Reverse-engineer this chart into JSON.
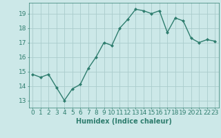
{
  "x": [
    0,
    1,
    2,
    3,
    4,
    5,
    6,
    7,
    8,
    9,
    10,
    11,
    12,
    13,
    14,
    15,
    16,
    17,
    18,
    19,
    20,
    21,
    22,
    23
  ],
  "y": [
    14.8,
    14.6,
    14.8,
    13.9,
    13.0,
    13.8,
    14.1,
    15.2,
    16.0,
    17.0,
    16.8,
    18.0,
    18.6,
    19.3,
    19.2,
    19.0,
    19.2,
    17.7,
    18.7,
    18.5,
    17.3,
    17.0,
    17.2,
    17.1
  ],
  "line_color": "#2e7d6e",
  "marker": "D",
  "marker_size": 2.0,
  "bg_color": "#cce8e8",
  "grid_color": "#aacccc",
  "xlabel": "Humidex (Indice chaleur)",
  "xlim": [
    -0.5,
    23.5
  ],
  "ylim": [
    12.5,
    19.75
  ],
  "yticks": [
    13,
    14,
    15,
    16,
    17,
    18,
    19
  ],
  "xticks": [
    0,
    1,
    2,
    3,
    4,
    5,
    6,
    7,
    8,
    9,
    10,
    11,
    12,
    13,
    14,
    15,
    16,
    17,
    18,
    19,
    20,
    21,
    22,
    23
  ],
  "xlabel_fontsize": 7,
  "tick_fontsize": 6.5,
  "line_width": 1.0
}
